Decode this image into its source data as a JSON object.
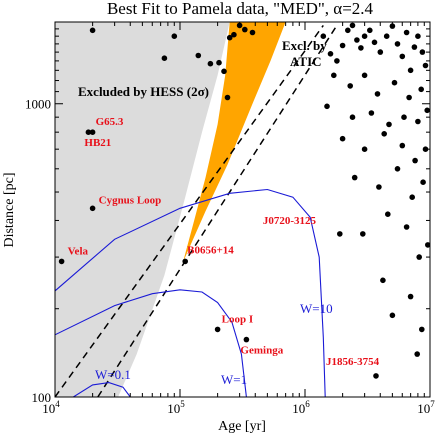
{
  "chart_data": {
    "type": "scatter",
    "title": "Best Fit to Pamela data, \"MED\", α=2.4",
    "xlabel": "Age [yr]",
    "ylabel": "Distance [pc]",
    "xscale": "log",
    "yscale": "log",
    "xlim": [
      10000,
      10000000
    ],
    "ylim": [
      100,
      1900
    ],
    "x_ticks": [
      {
        "value": 10000,
        "label": "10",
        "exp": "4"
      },
      {
        "value": 100000,
        "label": "10",
        "exp": "5"
      },
      {
        "value": 1000000,
        "label": "10",
        "exp": "6"
      },
      {
        "value": 10000000,
        "label": "10",
        "exp": "7"
      }
    ],
    "y_ticks": [
      {
        "value": 100,
        "label": "100"
      },
      {
        "value": 1000,
        "label": "1000"
      }
    ],
    "regions": [
      {
        "label": "Excluded by HESS (2σ)",
        "color": "#dcdcdc"
      },
      {
        "label": "Excl. by",
        "label2": "ATIC",
        "color": "#ffa500"
      }
    ],
    "dashed_lines": [
      {
        "points": [
          [
            10000,
            100
          ],
          [
            1400000,
            1850
          ]
        ]
      },
      {
        "points": [
          [
            22000,
            100
          ],
          [
            1800000,
            1850
          ]
        ]
      }
    ],
    "w_curves": [
      {
        "label": "W=0.1",
        "points": [
          [
            14000,
            100
          ],
          [
            20000,
            110
          ],
          [
            27000,
            112
          ],
          [
            35000,
            108
          ],
          [
            40000,
            100
          ]
        ]
      },
      {
        "label": "W=1",
        "points": [
          [
            10000,
            163
          ],
          [
            30000,
            205
          ],
          [
            60000,
            225
          ],
          [
            100000,
            232
          ],
          [
            150000,
            228
          ],
          [
            200000,
            210
          ],
          [
            260000,
            180
          ],
          [
            310000,
            140
          ],
          [
            340000,
            100
          ]
        ]
      },
      {
        "label": "W=10",
        "points": [
          [
            10000,
            230
          ],
          [
            30000,
            345
          ],
          [
            100000,
            440
          ],
          [
            250000,
            495
          ],
          [
            500000,
            510
          ],
          [
            800000,
            480
          ],
          [
            1100000,
            410
          ],
          [
            1300000,
            300
          ],
          [
            1400000,
            160
          ],
          [
            1450000,
            100
          ]
        ]
      }
    ],
    "labeled_sources": [
      {
        "name": "G65.3",
        "x": 20000,
        "y": 800
      },
      {
        "name": "HB21",
        "x": 18500,
        "y": 800
      },
      {
        "name": "Cygnus Loop",
        "x": 20000,
        "y": 440
      },
      {
        "name": "Vela",
        "x": 11300,
        "y": 290
      },
      {
        "name": "B0656+14",
        "x": 110000,
        "y": 290
      },
      {
        "name": "J0720-3125",
        "x": 1900000,
        "y": 360
      },
      {
        "name": "Loop I",
        "x": 200000,
        "y": 170
      },
      {
        "name": "Geminga",
        "x": 340000,
        "y": 157
      },
      {
        "name": "J1856-3754",
        "x": 3700000,
        "y": 118
      }
    ],
    "other_points": [
      [
        20000,
        1780
      ],
      [
        90000,
        1700
      ],
      [
        140000,
        1460
      ],
      [
        175000,
        1370
      ],
      [
        205000,
        1380
      ],
      [
        225000,
        1290
      ],
      [
        250000,
        1680
      ],
      [
        270000,
        1720
      ],
      [
        300000,
        1850
      ],
      [
        330000,
        1790
      ],
      [
        380000,
        1750
      ],
      [
        240000,
        1050
      ],
      [
        75000,
        1430
      ],
      [
        1400000,
        1700
      ],
      [
        1600000,
        1480
      ],
      [
        1800000,
        1400
      ],
      [
        2000000,
        1580
      ],
      [
        2200000,
        1780
      ],
      [
        2400000,
        1850
      ],
      [
        2600000,
        1650
      ],
      [
        2800000,
        1550
      ],
      [
        3000000,
        1700
      ],
      [
        3300000,
        1780
      ],
      [
        3600000,
        1620
      ],
      [
        4000000,
        1500
      ],
      [
        4500000,
        1700
      ],
      [
        5000000,
        1840
      ],
      [
        5500000,
        1600
      ],
      [
        6000000,
        1450
      ],
      [
        6500000,
        1750
      ],
      [
        7000000,
        1300
      ],
      [
        7500000,
        1560
      ],
      [
        8000000,
        1700
      ],
      [
        8700000,
        1500
      ],
      [
        9200000,
        1350
      ],
      [
        1700000,
        1250
      ],
      [
        2300000,
        1150
      ],
      [
        3000000,
        1250
      ],
      [
        3800000,
        1080
      ],
      [
        5200000,
        1180
      ],
      [
        6800000,
        1050
      ],
      [
        8500000,
        1120
      ],
      [
        1500000,
        980
      ],
      [
        2400000,
        900
      ],
      [
        3400000,
        930
      ],
      [
        4700000,
        850
      ],
      [
        6200000,
        900
      ],
      [
        8000000,
        870
      ],
      [
        9500000,
        950
      ],
      [
        2000000,
        760
      ],
      [
        3000000,
        700
      ],
      [
        4300000,
        790
      ],
      [
        6000000,
        720
      ],
      [
        7600000,
        640
      ],
      [
        9200000,
        700
      ],
      [
        2500000,
        560
      ],
      [
        3900000,
        520
      ],
      [
        5500000,
        600
      ],
      [
        7200000,
        480
      ],
      [
        8800000,
        540
      ],
      [
        2900000,
        360
      ],
      [
        4600000,
        420
      ],
      [
        6500000,
        380
      ],
      [
        8200000,
        300
      ],
      [
        9600000,
        330
      ],
      [
        4200000,
        250
      ],
      [
        7000000,
        220
      ],
      [
        5000000,
        190
      ],
      [
        8600000,
        170
      ],
      [
        7900000,
        140
      ]
    ]
  }
}
